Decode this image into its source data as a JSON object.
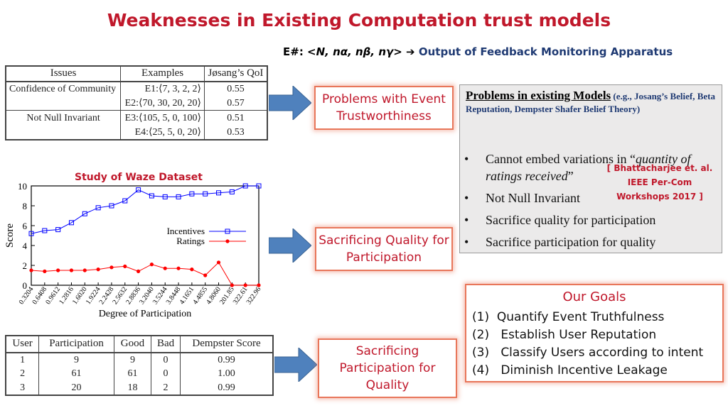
{
  "title": "Weaknesses in Existing Computation trust models",
  "subtitle": {
    "prefix": "E#: <",
    "symbols": "N, nα, nβ, nγ",
    "suffix": ">",
    "arrow": "➔",
    "output": "Output of Feedback Monitoring Apparatus"
  },
  "qoi_table": {
    "headers": [
      "Issues",
      "Examples",
      "Jøsang’s QoI"
    ],
    "groups": [
      {
        "issue": "Confidence of Community",
        "rows": [
          {
            "example": "E1:⟨7, 3, 2, 2⟩",
            "qoi": "0.55"
          },
          {
            "example": "E2:⟨70, 30, 20, 20⟩",
            "qoi": "0.57"
          }
        ]
      },
      {
        "issue": "Not Null Invariant",
        "rows": [
          {
            "example": "E3:⟨105, 5, 0, 100⟩",
            "qoi": "0.51"
          },
          {
            "example": "E4:⟨25, 5, 0, 20⟩",
            "qoi": "0.53"
          }
        ]
      }
    ]
  },
  "callouts": {
    "event": "Problems with Event Trustworthiness",
    "quality": "Sacrificing Quality for Participation",
    "participation": "Sacrificing Participation for Quality"
  },
  "models": {
    "heading": "Problems in existing Models",
    "heading_note": "(e.g., Josang’s Belief, Beta Reputation, Dempster Shafer Belief Theory)",
    "bullet": "•",
    "items": [
      {
        "pre": "Cannot embed variations in “",
        "em": "quantity of ratings received",
        "post": "”"
      },
      {
        "pre": "Not Null Invariant",
        "em": "",
        "post": ""
      },
      {
        "pre": "Sacrifice quality for participation",
        "em": "",
        "post": ""
      },
      {
        "pre": "Sacrifice participation for quality",
        "em": "",
        "post": ""
      }
    ],
    "reference": "[ Bhattacharjee et. al. IEEE Per-Com Workshops 2017 ]"
  },
  "goals": {
    "title": "Our Goals",
    "items": [
      {
        "num": "(1)",
        "text": "Quantify Event Truthfulness"
      },
      {
        "num": "(2)",
        "text": "Establish User Reputation"
      },
      {
        "num": "(3)",
        "text": "Classify Users according to intent"
      },
      {
        "num": "(4)",
        "text": "Diminish Incentive Leakage"
      }
    ]
  },
  "colors": {
    "title_red": "#c0182b",
    "arrow_blue": "#4f81bd",
    "callout_border": "#e8765a",
    "incentive_blue": "#0000ff",
    "ratings_red": "#ff0000"
  },
  "chart_data": {
    "type": "line",
    "title": "Study of Waze Dataset",
    "xlabel": "Degree of Participation",
    "ylabel": "Score",
    "ylim": [
      0,
      10
    ],
    "yticks": [
      0,
      2,
      4,
      6,
      8,
      10
    ],
    "categories": [
      "0.3204",
      "0.6408",
      "0.9612",
      "1.2816",
      "1.6020",
      "1.9224",
      "2.2428",
      "2.5632",
      "2.8836",
      "3.2040",
      "3.5244",
      "3.8448",
      "4.1651",
      "4.4855",
      "4.8060",
      "201.85",
      "322.61",
      "322.96"
    ],
    "legend_position": "center-right",
    "grid": false,
    "series": [
      {
        "name": "Incentives",
        "marker": "square",
        "color": "#0000ff",
        "values": [
          5.2,
          5.5,
          5.6,
          6.3,
          7.2,
          7.8,
          8.0,
          8.5,
          9.6,
          9.0,
          8.9,
          8.9,
          9.2,
          9.2,
          9.3,
          9.4,
          10.0,
          10.0
        ]
      },
      {
        "name": "Ratings",
        "marker": "circle",
        "color": "#ff0000",
        "values": [
          1.5,
          1.4,
          1.5,
          1.5,
          1.5,
          1.6,
          1.8,
          1.9,
          1.4,
          2.1,
          1.7,
          1.7,
          1.6,
          1.0,
          2.3,
          0.0,
          0.0,
          0.0
        ]
      }
    ]
  },
  "user_table": {
    "headers": [
      "User",
      "Participation",
      "Good",
      "Bad",
      "Dempster Score"
    ],
    "rows": [
      [
        "1",
        "9",
        "9",
        "0",
        "0.99"
      ],
      [
        "2",
        "61",
        "61",
        "0",
        "1.00"
      ],
      [
        "3",
        "20",
        "18",
        "2",
        "0.99"
      ]
    ]
  }
}
